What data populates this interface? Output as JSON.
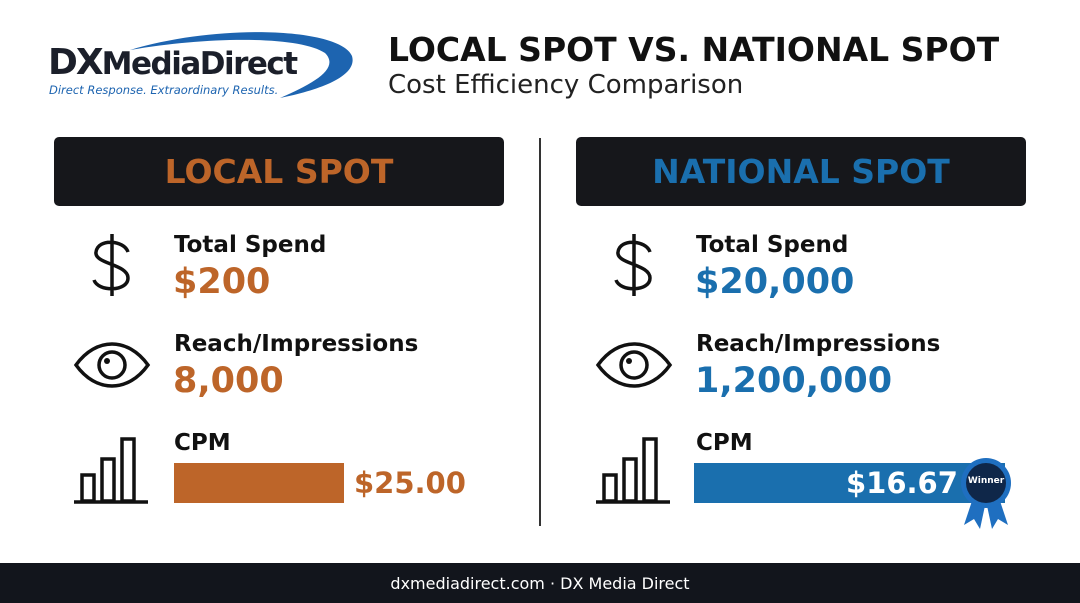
{
  "header": {
    "logo": {
      "prefix": "DX",
      "name": "MediaDirect",
      "tagline": "Direct Response. Extraordinary Results."
    },
    "title": "LOCAL SPOT VS. NATIONAL SPOT",
    "subtitle": "Cost Efficiency Comparison"
  },
  "panels": [
    {
      "heading": "LOCAL SPOT",
      "metrics": [
        {
          "label": "Total Spend",
          "value": "$200"
        },
        {
          "label": "Reach/Impressions",
          "value": "8,000"
        },
        {
          "label": "CPM",
          "value": "$25.00"
        }
      ]
    },
    {
      "heading": "NATIONAL SPOT",
      "metrics": [
        {
          "label": "Total Spend",
          "value": "$20,000"
        },
        {
          "label": "Reach/Impressions",
          "value": "1,200,000"
        },
        {
          "label": "CPM",
          "value": "$16.67",
          "badge": "Winner"
        }
      ]
    }
  ],
  "footer": "dxmediadirect.com · DX Media Direct"
}
